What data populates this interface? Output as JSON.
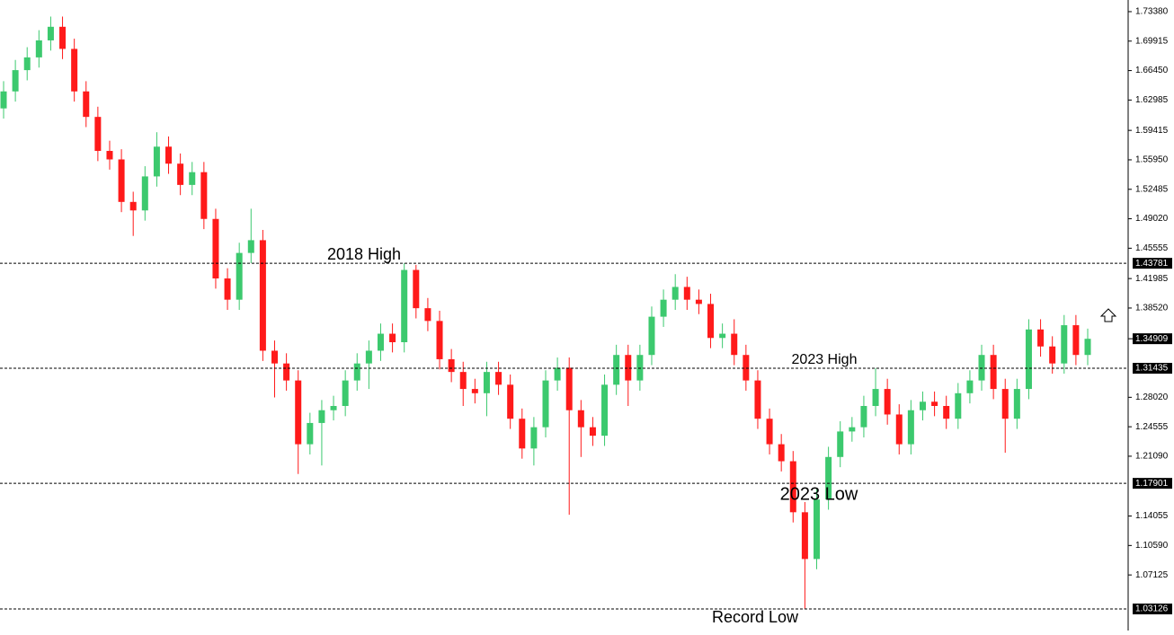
{
  "chart_data": {
    "type": "candlestick",
    "up_color": "#3cc96e",
    "down_color": "#ff1a1a",
    "ylim": [
      1.0059,
      1.7475
    ],
    "yticks": [
      {
        "value": 1.7338,
        "label": "1.73380"
      },
      {
        "value": 1.69915,
        "label": "1.69915"
      },
      {
        "value": 1.6645,
        "label": "1.66450"
      },
      {
        "value": 1.62985,
        "label": "1.62985"
      },
      {
        "value": 1.59415,
        "label": "1.59415"
      },
      {
        "value": 1.5595,
        "label": "1.55950"
      },
      {
        "value": 1.52485,
        "label": "1.52485"
      },
      {
        "value": 1.4902,
        "label": "1.49020"
      },
      {
        "value": 1.45555,
        "label": "1.45555"
      },
      {
        "value": 1.41985,
        "label": "1.41985"
      },
      {
        "value": 1.3852,
        "label": "1.38520"
      },
      {
        "value": 1.2802,
        "label": "1.28020"
      },
      {
        "value": 1.24555,
        "label": "1.24555"
      },
      {
        "value": 1.2109,
        "label": "1.21090"
      },
      {
        "value": 1.14055,
        "label": "1.14055"
      },
      {
        "value": 1.1059,
        "label": "1.10590"
      },
      {
        "value": 1.07125,
        "label": "1.07125"
      }
    ],
    "levels": [
      {
        "value": 1.43781,
        "label": "1.43781"
      },
      {
        "value": 1.31435,
        "label": "1.31435"
      },
      {
        "value": 1.17901,
        "label": "1.17901"
      },
      {
        "value": 1.03126,
        "label": "1.03126"
      }
    ],
    "current_price": {
      "value": 1.34909,
      "label": "1.34909"
    },
    "annotations": [
      "2018 High",
      "2023 High",
      "2023 Low",
      "Record Low"
    ],
    "open": [
      1.62,
      1.64,
      1.665,
      1.68,
      1.7,
      1.716,
      1.69,
      1.64,
      1.61,
      1.57,
      1.56,
      1.51,
      1.5,
      1.54,
      1.575,
      1.555,
      1.53,
      1.545,
      1.49,
      1.42,
      1.395,
      1.45,
      1.465,
      1.335,
      1.32,
      1.3,
      1.225,
      1.25,
      1.265,
      1.27,
      1.3,
      1.32,
      1.335,
      1.355,
      1.345,
      1.43,
      1.385,
      1.37,
      1.325,
      1.31,
      1.29,
      1.285,
      1.31,
      1.295,
      1.255,
      1.22,
      1.245,
      1.3,
      1.315,
      1.265,
      1.245,
      1.235,
      1.295,
      1.33,
      1.3,
      1.33,
      1.375,
      1.395,
      1.41,
      1.395,
      1.39,
      1.35,
      1.355,
      1.33,
      1.3,
      1.255,
      1.225,
      1.205,
      1.145,
      1.09,
      1.16,
      1.21,
      1.24,
      1.245,
      1.27,
      1.29,
      1.26,
      1.225,
      1.265,
      1.275,
      1.27,
      1.255,
      1.285,
      1.3,
      1.33,
      1.29,
      1.255,
      1.29,
      1.36,
      1.34,
      1.32,
      1.365,
      1.33
    ],
    "high": [
      1.652,
      1.677,
      1.692,
      1.712,
      1.728,
      1.728,
      1.702,
      1.652,
      1.622,
      1.582,
      1.572,
      1.522,
      1.552,
      1.592,
      1.587,
      1.567,
      1.557,
      1.557,
      1.502,
      1.432,
      1.462,
      1.502,
      1.477,
      1.347,
      1.332,
      1.312,
      1.262,
      1.277,
      1.282,
      1.312,
      1.332,
      1.347,
      1.367,
      1.367,
      1.4378,
      1.436,
      1.397,
      1.382,
      1.337,
      1.322,
      1.302,
      1.322,
      1.322,
      1.307,
      1.267,
      1.257,
      1.312,
      1.327,
      1.327,
      1.277,
      1.257,
      1.307,
      1.342,
      1.342,
      1.342,
      1.387,
      1.407,
      1.425,
      1.422,
      1.407,
      1.402,
      1.367,
      1.372,
      1.342,
      1.312,
      1.267,
      1.237,
      1.217,
      1.157,
      1.172,
      1.222,
      1.252,
      1.257,
      1.282,
      1.3144,
      1.302,
      1.272,
      1.277,
      1.287,
      1.287,
      1.282,
      1.297,
      1.312,
      1.342,
      1.342,
      1.302,
      1.302,
      1.372,
      1.372,
      1.352,
      1.377,
      1.377,
      1.361
    ],
    "low": [
      1.608,
      1.628,
      1.653,
      1.668,
      1.688,
      1.678,
      1.628,
      1.598,
      1.558,
      1.548,
      1.498,
      1.47,
      1.488,
      1.528,
      1.543,
      1.518,
      1.518,
      1.478,
      1.408,
      1.383,
      1.383,
      1.438,
      1.323,
      1.28,
      1.288,
      1.19,
      1.213,
      1.2,
      1.253,
      1.258,
      1.288,
      1.29,
      1.323,
      1.333,
      1.333,
      1.373,
      1.358,
      1.313,
      1.298,
      1.27,
      1.273,
      1.258,
      1.283,
      1.243,
      1.208,
      1.2,
      1.233,
      1.288,
      1.142,
      1.21,
      1.223,
      1.223,
      1.283,
      1.27,
      1.288,
      1.318,
      1.363,
      1.383,
      1.383,
      1.378,
      1.338,
      1.338,
      1.318,
      1.288,
      1.243,
      1.213,
      1.193,
      1.133,
      1.0313,
      1.078,
      1.148,
      1.198,
      1.228,
      1.233,
      1.258,
      1.248,
      1.213,
      1.213,
      1.253,
      1.258,
      1.243,
      1.243,
      1.273,
      1.288,
      1.278,
      1.215,
      1.243,
      1.278,
      1.328,
      1.308,
      1.308,
      1.318,
      1.318
    ],
    "close": [
      1.64,
      1.665,
      1.68,
      1.7,
      1.716,
      1.69,
      1.64,
      1.61,
      1.57,
      1.56,
      1.51,
      1.5,
      1.54,
      1.575,
      1.555,
      1.53,
      1.545,
      1.49,
      1.42,
      1.395,
      1.45,
      1.465,
      1.335,
      1.32,
      1.3,
      1.225,
      1.25,
      1.265,
      1.27,
      1.3,
      1.32,
      1.335,
      1.355,
      1.345,
      1.43,
      1.385,
      1.37,
      1.325,
      1.31,
      1.29,
      1.285,
      1.31,
      1.295,
      1.255,
      1.22,
      1.245,
      1.3,
      1.315,
      1.265,
      1.245,
      1.235,
      1.295,
      1.33,
      1.3,
      1.33,
      1.375,
      1.395,
      1.41,
      1.395,
      1.39,
      1.35,
      1.355,
      1.33,
      1.3,
      1.255,
      1.225,
      1.205,
      1.145,
      1.09,
      1.16,
      1.21,
      1.24,
      1.245,
      1.27,
      1.29,
      1.26,
      1.225,
      1.265,
      1.275,
      1.27,
      1.255,
      1.285,
      1.3,
      1.33,
      1.29,
      1.255,
      1.29,
      1.36,
      1.34,
      1.32,
      1.365,
      1.33,
      1.349
    ]
  }
}
